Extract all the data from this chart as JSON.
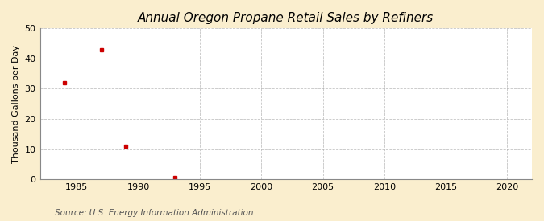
{
  "title": "Annual Oregon Propane Retail Sales by Refiners",
  "ylabel": "Thousand Gallons per Day",
  "source": "Source: U.S. Energy Information Administration",
  "x_data": [
    1984,
    1987,
    1989,
    1993
  ],
  "y_data": [
    32.0,
    43.0,
    11.0,
    0.5
  ],
  "marker_color": "#cc0000",
  "marker": "s",
  "marker_size": 3,
  "xlim": [
    1982,
    2022
  ],
  "ylim": [
    0,
    50
  ],
  "xticks": [
    1985,
    1990,
    1995,
    2000,
    2005,
    2010,
    2015,
    2020
  ],
  "yticks": [
    0,
    10,
    20,
    30,
    40,
    50
  ],
  "background_color": "#faeece",
  "plot_bg_color": "#ffffff",
  "grid_color": "#aaaaaa",
  "grid_style": "--",
  "title_fontsize": 11,
  "label_fontsize": 8,
  "tick_fontsize": 8,
  "source_fontsize": 7.5
}
